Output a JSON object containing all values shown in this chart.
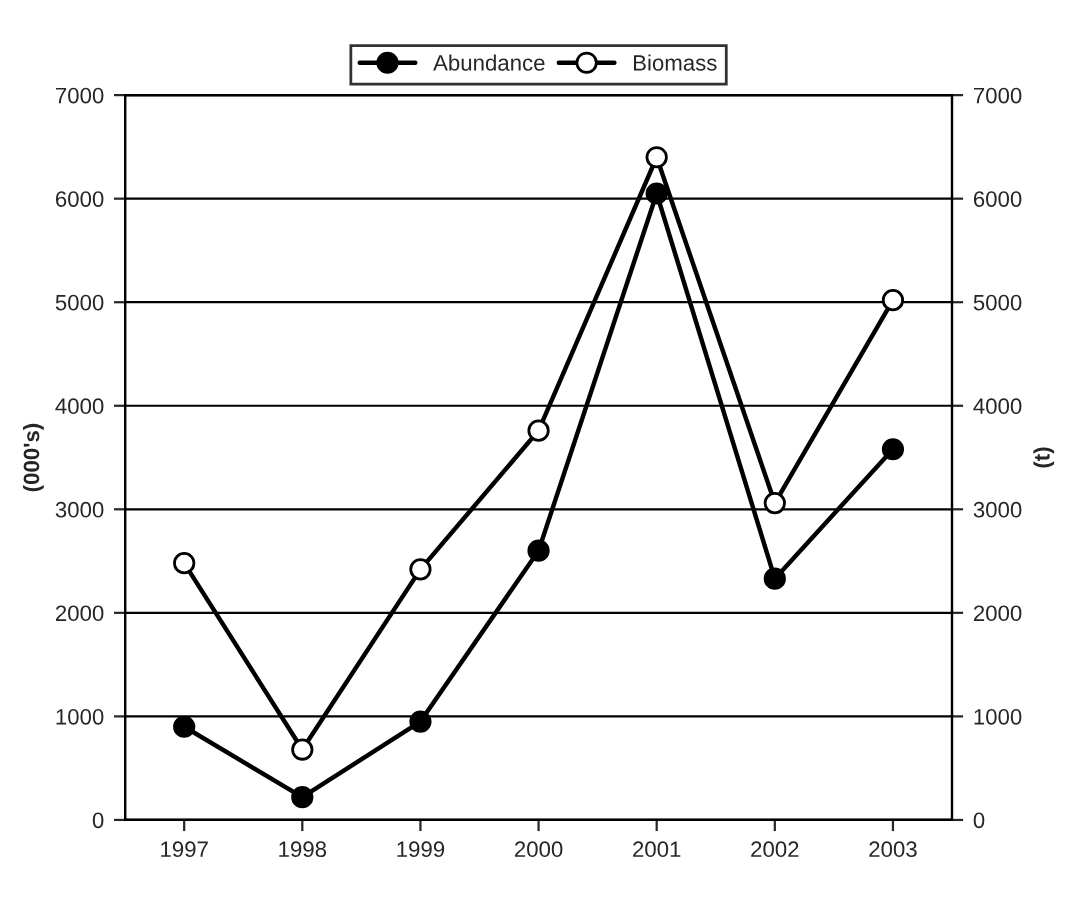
{
  "chart_data": {
    "type": "line",
    "categories": [
      "1997",
      "1998",
      "1999",
      "2000",
      "2001",
      "2002",
      "2003"
    ],
    "series": [
      {
        "name": "Abundance",
        "color": "#000000",
        "values": [
          900,
          220,
          950,
          2600,
          6050,
          2330,
          3580
        ]
      },
      {
        "name": "Biomass",
        "color": "#000000",
        "values": [
          2480,
          680,
          2420,
          3760,
          6400,
          3060,
          5020
        ],
        "axis": "y2"
      }
    ],
    "ylabel": "(000's)",
    "y2label": "(t)",
    "ylim": [
      0,
      7000
    ],
    "yticks": [
      0,
      1000,
      2000,
      3000,
      4000,
      5000,
      6000,
      7000
    ],
    "y2lim": [
      0,
      7000
    ],
    "y2ticks": [
      0,
      1000,
      2000,
      3000,
      4000,
      5000,
      6000,
      7000
    ],
    "grid": "y",
    "legend": "top",
    "marker": "circle",
    "line_style": "solid"
  }
}
